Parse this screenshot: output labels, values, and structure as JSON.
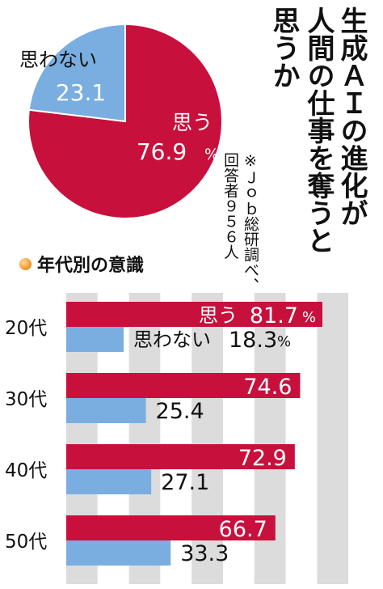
{
  "title_lines": [
    "生成ＡＩの進化が",
    "人間の仕事を奪うと",
    "思うか"
  ],
  "source_lines": [
    "※Ｊｏｂ総研調べ、",
    "回答者９５６人"
  ],
  "section_title": "年代別の意識",
  "colors": {
    "yes": "#c8103c",
    "no": "#7aaee0",
    "bg_stripe": "#dcdcdc"
  },
  "chart_data": [
    {
      "type": "pie",
      "slices": [
        {
          "label": "思う",
          "value": 76.9,
          "display": "76.9",
          "unit": "%"
        },
        {
          "label": "思わない",
          "value": 23.1,
          "display": "23.1",
          "unit": ""
        }
      ]
    },
    {
      "type": "bar",
      "orientation": "horizontal",
      "categories": [
        "20代",
        "30代",
        "40代",
        "50代"
      ],
      "series": [
        {
          "name": "思う",
          "values": [
            81.7,
            74.6,
            72.9,
            66.7
          ]
        },
        {
          "name": "思わない",
          "values": [
            18.3,
            25.4,
            27.1,
            33.3
          ]
        }
      ],
      "value_labels": {
        "yes": [
          "81.7",
          "74.6",
          "72.9",
          "66.7"
        ],
        "no": [
          "18.3",
          "25.4",
          "27.1",
          "33.3"
        ]
      },
      "first_row_labels": {
        "yes_name": "思う",
        "no_name": "思わない",
        "unit": "%"
      },
      "xlim": [
        0,
        100
      ]
    }
  ]
}
